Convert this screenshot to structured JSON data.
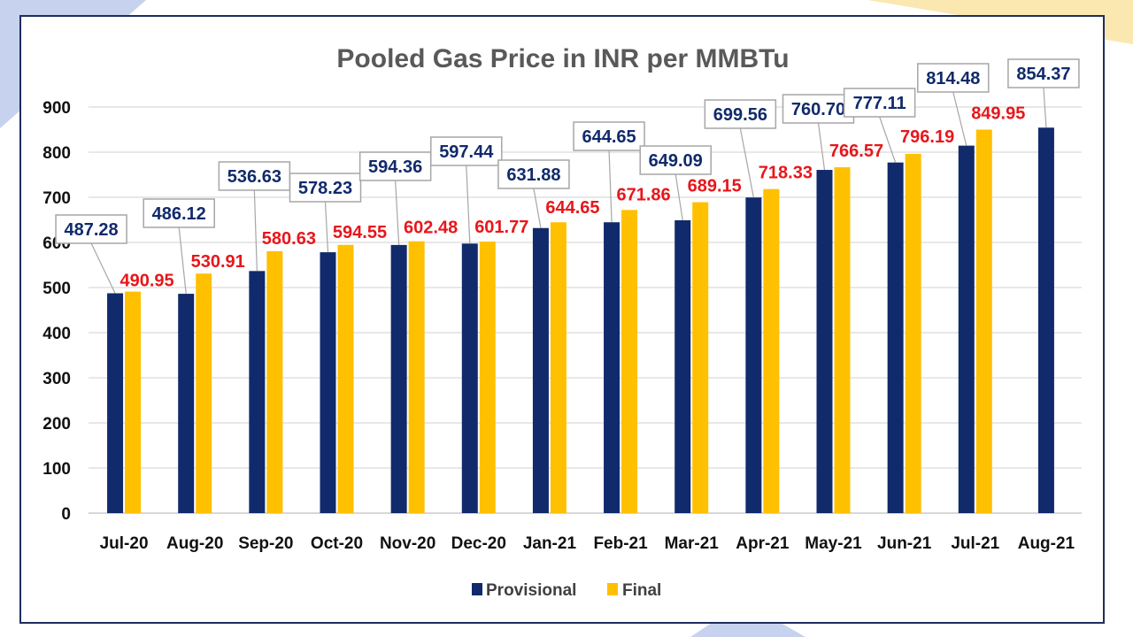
{
  "chart_data": {
    "type": "bar",
    "title": "Pooled Gas Price in INR per MMBTu",
    "xlabel": "",
    "ylabel": "",
    "ylim": [
      0,
      900
    ],
    "yticks": [
      0,
      100,
      200,
      300,
      400,
      500,
      600,
      700,
      800,
      900
    ],
    "grid": true,
    "legend_position": "bottom",
    "categories": [
      "Jul-20",
      "Aug-20",
      "Sep-20",
      "Oct-20",
      "Nov-20",
      "Dec-20",
      "Jan-21",
      "Feb-21",
      "Mar-21",
      "Apr-21",
      "May-21",
      "Jun-21",
      "Jul-21",
      "Aug-21"
    ],
    "series": [
      {
        "name": "Provisional",
        "color": "#102a6b",
        "label_color": "#102a6b",
        "values": [
          487.28,
          486.12,
          536.63,
          578.23,
          594.36,
          597.44,
          631.88,
          644.65,
          649.09,
          699.56,
          760.7,
          777.11,
          814.48,
          854.37
        ],
        "labels": [
          "487.28",
          "486.12",
          "536.63",
          "578.23",
          "594.36",
          "597.44",
          "631.88",
          "644.65",
          "649.09",
          "699.56",
          "760.70",
          "777.11",
          "814.48",
          "854.37"
        ]
      },
      {
        "name": "Final",
        "color": "#ffc000",
        "label_color": "#e8161b",
        "values": [
          490.95,
          530.91,
          580.63,
          594.55,
          602.48,
          601.77,
          644.65,
          671.86,
          689.15,
          718.33,
          766.57,
          796.19,
          849.95,
          null
        ],
        "labels": [
          "490.95",
          "530.91",
          "580.63",
          "594.55",
          "602.48",
          "601.77",
          "644.65",
          "671.86",
          "689.15",
          "718.33",
          "766.57",
          "796.19",
          "849.95",
          null
        ]
      }
    ]
  },
  "colors": {
    "frame": "#1f2d5c",
    "grid": "#d9d9d9",
    "axis": "#bfbfbf",
    "callout_border": "#a6a6a6",
    "corner_accent_yellow": "#fbe7b0",
    "corner_accent_blue": "#c7d2ee"
  }
}
